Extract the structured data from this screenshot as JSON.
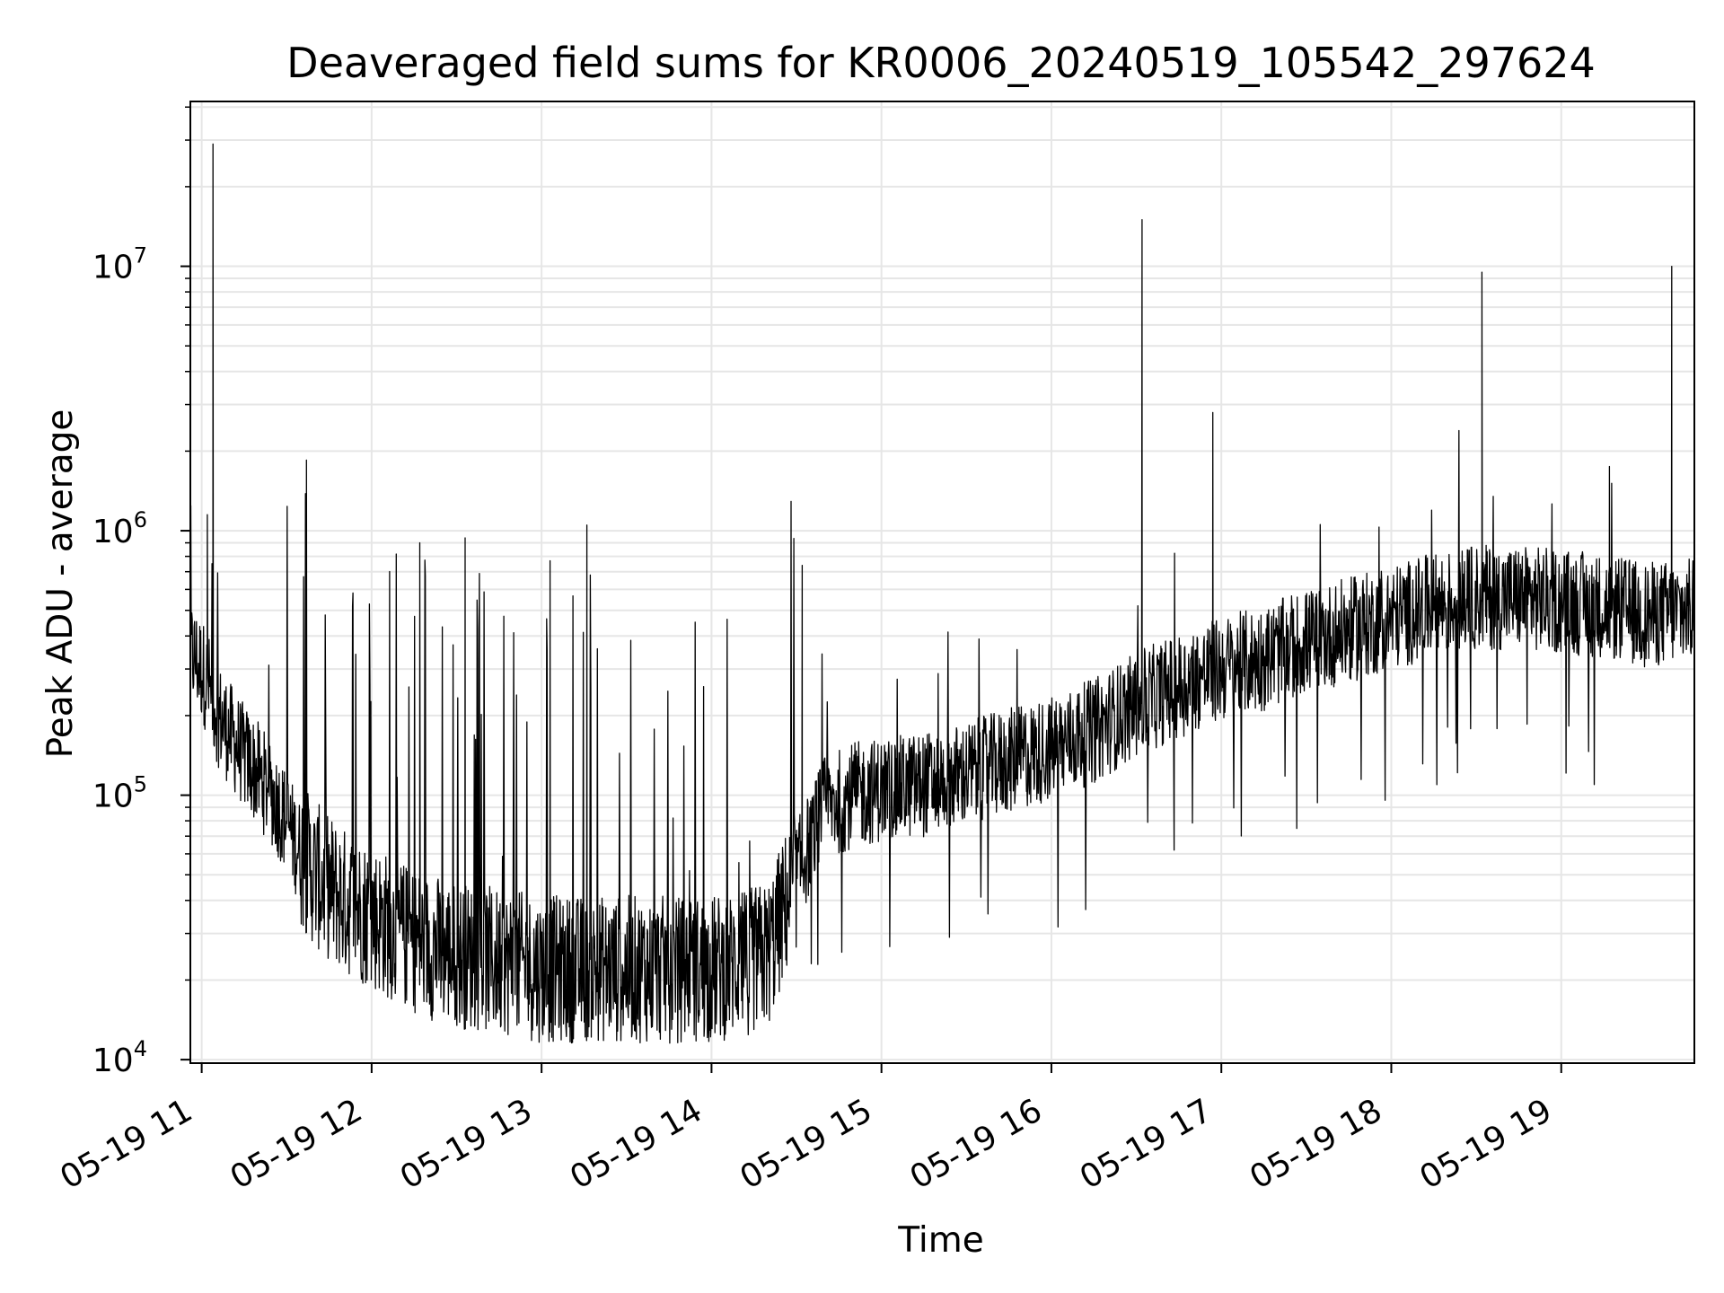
{
  "chart_data": {
    "type": "line",
    "title": "Deaveraged field sums for KR0006_20240519_105542_297624",
    "xlabel": "Time",
    "ylabel": "Peak ADU - average",
    "yscale": "log",
    "ylim": [
      9700,
      42000000
    ],
    "xlim": [
      "05-19 10:56",
      "05-19 19:47"
    ],
    "x_ticks": [
      "05-19 11",
      "05-19 12",
      "05-19 13",
      "05-19 14",
      "05-19 15",
      "05-19 16",
      "05-19 17",
      "05-19 18",
      "05-19 19"
    ],
    "y_ticks": [
      {
        "value": 10000,
        "base": "10",
        "exp": "4"
      },
      {
        "value": 100000,
        "base": "10",
        "exp": "5"
      },
      {
        "value": 1000000,
        "base": "10",
        "exp": "6"
      },
      {
        "value": 10000000,
        "base": "10",
        "exp": "7"
      }
    ],
    "grid": true,
    "line_color": "#000000",
    "grid_color": "#e6e6e6",
    "series": [
      {
        "x": [
          "05-19 10:56",
          "05-19 11:00",
          "05-19 11:03",
          "05-19 11:06",
          "05-19 11:10",
          "05-19 11:15",
          "05-19 11:20",
          "05-19 11:25",
          "05-19 11:30",
          "05-19 11:35",
          "05-19 11:40",
          "05-19 11:45",
          "05-19 11:50",
          "05-19 12:00",
          "05-19 12:10",
          "05-19 12:20",
          "05-19 12:30",
          "05-19 12:40",
          "05-19 12:50",
          "05-19 13:00",
          "05-19 13:10",
          "05-19 13:20",
          "05-19 13:30",
          "05-19 13:40",
          "05-19 13:50",
          "05-19 14:00",
          "05-19 14:10",
          "05-19 14:20",
          "05-19 14:30",
          "05-19 14:40",
          "05-19 14:50",
          "05-19 15:00",
          "05-19 15:15",
          "05-19 15:30",
          "05-19 15:45",
          "05-19 16:00",
          "05-19 16:15",
          "05-19 16:30",
          "05-19 16:45",
          "05-19 17:00",
          "05-19 17:15",
          "05-19 17:30",
          "05-19 17:45",
          "05-19 18:00",
          "05-19 18:15",
          "05-19 18:30",
          "05-19 18:45",
          "05-19 19:00",
          "05-19 19:15",
          "05-19 19:30",
          "05-19 19:47"
        ],
        "baseline": [
          350000,
          300000,
          250000,
          200000,
          170000,
          140000,
          120000,
          100000,
          80000,
          60000,
          50000,
          45000,
          40000,
          35000,
          30000,
          27000,
          25000,
          24000,
          23000,
          22000,
          22000,
          22000,
          22000,
          22000,
          22000,
          22000,
          23000,
          25000,
          50000,
          90000,
          100000,
          105000,
          110000,
          120000,
          135000,
          150000,
          175000,
          220000,
          260000,
          300000,
          330000,
          380000,
          420000,
          470000,
          520000,
          560000,
          560000,
          540000,
          520000,
          480000,
          500000
        ],
        "spikes": [
          {
            "time": "05-19 11:04",
            "value": 29000000
          },
          {
            "time": "05-19 11:02",
            "value": 1150000
          },
          {
            "time": "05-19 11:37",
            "value": 1850000
          },
          {
            "time": "05-19 12:17",
            "value": 900000
          },
          {
            "time": "05-19 12:33",
            "value": 940000
          },
          {
            "time": "05-19 13:03",
            "value": 770000
          },
          {
            "time": "05-19 13:16",
            "value": 1050000
          },
          {
            "time": "05-19 14:32",
            "value": 740000
          },
          {
            "time": "05-19 16:32",
            "value": 15000000
          },
          {
            "time": "05-19 16:57",
            "value": 2800000
          },
          {
            "time": "05-19 18:32",
            "value": 9500000
          },
          {
            "time": "05-19 19:17",
            "value": 1750000
          },
          {
            "time": "05-19 19:39",
            "value": 10000000
          }
        ]
      }
    ]
  }
}
